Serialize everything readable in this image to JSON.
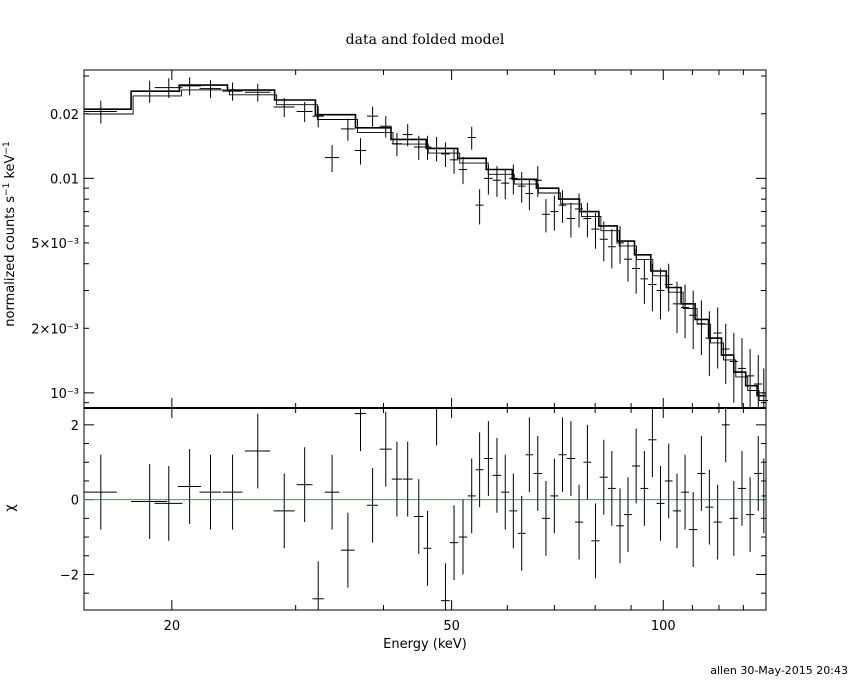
{
  "chart_data": [
    {
      "panel": "top",
      "type": "scatter",
      "title": "data and folded model",
      "xlabel": "Energy (keV)",
      "ylabel": "normalized counts s⁻¹ keV⁻¹",
      "xscale": "log",
      "yscale": "log",
      "xlim": [
        15,
        140
      ],
      "ylim": [
        0.00085,
        0.032
      ],
      "ytick_labels": [
        "10⁻³",
        "2×10⁻³",
        "5×10⁻³",
        "0.01",
        "0.02"
      ],
      "data": {
        "x": [
          15.85,
          18.6,
          19.8,
          21.2,
          22.7,
          24.4,
          26.5,
          28.9,
          30.9,
          32.3,
          33.8,
          35.6,
          37.1,
          38.6,
          40.3,
          41.8,
          43.3,
          44.9,
          46.2,
          47.6,
          49.0,
          50.4,
          51.9,
          53.4,
          54.8,
          56.4,
          58.0,
          59.6,
          61.2,
          62.9,
          64.5,
          66.3,
          68.1,
          70.0,
          71.9,
          73.9,
          75.9,
          78.0,
          80.1,
          82.3,
          84.5,
          86.8,
          89.1,
          91.5,
          94.0,
          96.5,
          99.1,
          101.8,
          104.6,
          107.4,
          110.3,
          113.3,
          116.3,
          119.5,
          122.7,
          126.0,
          129.4,
          132.9,
          136.5,
          139.0
        ],
        "xerr": [
          0.85,
          1.1,
          0.9,
          0.8,
          0.8,
          0.8,
          1.1,
          1.0,
          0.8,
          0.6,
          0.8,
          0.8,
          0.7,
          0.7,
          0.8,
          0.7,
          0.7,
          0.7,
          0.6,
          0.7,
          0.7,
          0.7,
          0.7,
          0.7,
          0.7,
          0.8,
          0.8,
          0.8,
          0.8,
          0.8,
          0.8,
          0.9,
          0.9,
          0.9,
          0.9,
          1.0,
          1.0,
          1.0,
          1.1,
          1.1,
          1.1,
          1.1,
          1.2,
          1.2,
          1.2,
          1.3,
          1.3,
          1.3,
          1.4,
          1.4,
          1.5,
          1.5,
          1.5,
          1.6,
          1.6,
          1.7,
          1.7,
          1.8,
          1.8,
          1.0
        ],
        "y": [
          0.0205,
          0.0255,
          0.0265,
          0.027,
          0.0262,
          0.0255,
          0.0252,
          0.0215,
          0.0205,
          0.0195,
          0.0125,
          0.017,
          0.0135,
          0.0195,
          0.0175,
          0.0145,
          0.016,
          0.014,
          0.014,
          0.0138,
          0.013,
          0.0122,
          0.011,
          0.0155,
          0.0075,
          0.01,
          0.0098,
          0.0095,
          0.01,
          0.0092,
          0.0085,
          0.0098,
          0.0068,
          0.007,
          0.0075,
          0.0065,
          0.0072,
          0.0065,
          0.0058,
          0.0052,
          0.0048,
          0.005,
          0.0042,
          0.0038,
          0.0034,
          0.0032,
          0.003,
          0.0032,
          0.0026,
          0.0025,
          0.0023,
          0.0021,
          0.0018,
          0.0019,
          0.0016,
          0.0014,
          0.0013,
          0.0012,
          0.0011,
          0.001
        ],
        "yerr": [
          0.0025,
          0.003,
          0.0028,
          0.0026,
          0.0025,
          0.0025,
          0.0024,
          0.0022,
          0.0022,
          0.0022,
          0.0018,
          0.002,
          0.0019,
          0.0021,
          0.002,
          0.0018,
          0.0019,
          0.0018,
          0.0018,
          0.0018,
          0.0017,
          0.0017,
          0.0016,
          0.0019,
          0.0014,
          0.0016,
          0.0016,
          0.0015,
          0.0016,
          0.0015,
          0.0014,
          0.0016,
          0.0012,
          0.0013,
          0.0013,
          0.0012,
          0.0013,
          0.0012,
          0.0011,
          0.0011,
          0.001,
          0.001,
          0.0009,
          0.0009,
          0.0008,
          0.0008,
          0.0008,
          0.0008,
          0.0007,
          0.0007,
          0.0007,
          0.0006,
          0.0006,
          0.0006,
          0.0005,
          0.0005,
          0.0005,
          0.0004,
          0.0004,
          0.0003
        ]
      },
      "model": {
        "edges": [
          15,
          17.5,
          20.5,
          24,
          28,
          32,
          36.5,
          41,
          46,
          51,
          56,
          61,
          66,
          71,
          76,
          81,
          86,
          91,
          96,
          101,
          106,
          111,
          116,
          121,
          126,
          131,
          136,
          140
        ],
        "values": [
          0.021,
          0.0255,
          0.0272,
          0.0258,
          0.0232,
          0.0198,
          0.0172,
          0.0152,
          0.0138,
          0.0124,
          0.011,
          0.0099,
          0.009,
          0.008,
          0.007,
          0.006,
          0.0051,
          0.0044,
          0.0037,
          0.0031,
          0.0026,
          0.0022,
          0.0018,
          0.0015,
          0.00125,
          0.00108,
          0.00097
        ]
      }
    },
    {
      "panel": "bottom",
      "type": "scatter",
      "xlabel": "Energy (keV)",
      "ylabel": "χ",
      "xscale": "log",
      "xlim": [
        15,
        140
      ],
      "ylim": [
        -2.95,
        2.45
      ],
      "xtick_labels": [
        "20",
        "50",
        "100"
      ],
      "ytick_labels": [
        "−2",
        "0",
        "2"
      ],
      "reference_line": {
        "y": 0,
        "color": "#00cc00"
      },
      "data": {
        "x": [
          15.85,
          18.6,
          19.8,
          21.2,
          22.7,
          24.4,
          26.5,
          28.9,
          30.9,
          32.3,
          33.8,
          35.6,
          37.1,
          38.6,
          40.3,
          41.8,
          43.3,
          44.9,
          46.2,
          47.6,
          49.0,
          50.4,
          51.9,
          53.4,
          54.8,
          56.4,
          58.0,
          59.6,
          61.2,
          62.9,
          64.5,
          66.3,
          68.1,
          70.0,
          71.9,
          73.9,
          75.9,
          78.0,
          80.1,
          82.3,
          84.5,
          86.8,
          89.1,
          91.5,
          94.0,
          96.5,
          99.1,
          101.8,
          104.6,
          107.4,
          110.3,
          113.3,
          116.3,
          119.5,
          122.7,
          126.0,
          129.4,
          132.9,
          136.5,
          139.0
        ],
        "xerr": [
          0.85,
          1.1,
          0.9,
          0.8,
          0.8,
          0.8,
          1.1,
          1.0,
          0.8,
          0.6,
          0.8,
          0.8,
          0.7,
          0.7,
          0.8,
          0.7,
          0.7,
          0.7,
          0.6,
          0.7,
          0.7,
          0.7,
          0.7,
          0.7,
          0.7,
          0.8,
          0.8,
          0.8,
          0.8,
          0.8,
          0.8,
          0.9,
          0.9,
          0.9,
          0.9,
          1.0,
          1.0,
          1.0,
          1.1,
          1.1,
          1.1,
          1.1,
          1.2,
          1.2,
          1.2,
          1.3,
          1.3,
          1.3,
          1.4,
          1.4,
          1.5,
          1.5,
          1.5,
          1.6,
          1.6,
          1.7,
          1.7,
          1.8,
          1.8,
          1.0
        ],
        "y": [
          0.2,
          -0.05,
          -0.1,
          0.35,
          0.2,
          0.2,
          1.3,
          -0.3,
          0.4,
          -2.65,
          0.2,
          -1.35,
          2.3,
          -0.15,
          1.35,
          0.55,
          0.55,
          -0.45,
          -1.3,
          2.45,
          -2.7,
          -1.15,
          -1.0,
          0.1,
          0.8,
          1.1,
          0.65,
          0.2,
          -0.3,
          -0.9,
          1.2,
          0.7,
          -0.5,
          0.1,
          1.2,
          1.1,
          -0.6,
          1.0,
          -1.1,
          0.6,
          0.3,
          -0.7,
          -0.4,
          0.9,
          0.3,
          1.6,
          -0.1,
          0.5,
          -0.3,
          0.2,
          -0.8,
          0.7,
          -0.2,
          -0.6,
          2.0,
          -0.5,
          0.3,
          -0.4,
          0.7,
          0.1
        ],
        "yerr": 1
      }
    }
  ],
  "footer": "allen 30-May-2015 20:43"
}
